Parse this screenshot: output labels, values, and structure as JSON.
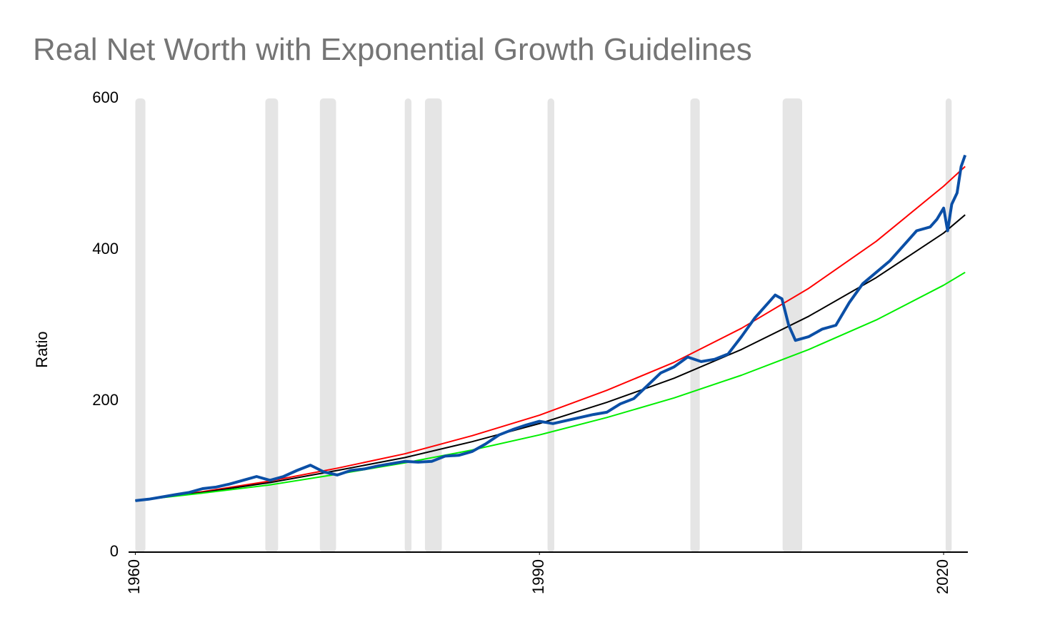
{
  "chart_data": {
    "type": "line",
    "title": "Real Net Worth with Exponential Growth Guidelines",
    "y_label": "Ratio",
    "xlim": [
      1959.5,
      2021.8
    ],
    "xticks": [
      1960,
      1990,
      2020
    ],
    "ylim": [
      0,
      600
    ],
    "yticks": [
      0,
      200,
      400,
      600
    ],
    "grid": false,
    "recessions": [
      [
        1960.0,
        1960.75
      ],
      [
        1969.65,
        1970.6
      ],
      [
        1973.7,
        1974.9
      ],
      [
        1980.0,
        1980.5
      ],
      [
        1981.5,
        1982.75
      ],
      [
        1990.6,
        1991.1
      ],
      [
        2001.2,
        2001.9
      ],
      [
        2008.05,
        2009.5
      ],
      [
        2020.15,
        2020.6
      ]
    ],
    "recession_color": "#e5e5e5",
    "series": [
      {
        "color": "#ff0000",
        "width": 2,
        "x": [
          1960,
          1965,
          1970,
          1975,
          1980,
          1985,
          1990,
          1995,
          2000,
          2005,
          2010,
          2015,
          2020,
          2021.6
        ],
        "values": [
          68,
          80,
          94,
          111,
          130,
          154,
          181,
          214,
          251,
          296,
          349,
          411,
          484,
          510
        ]
      },
      {
        "color": "#000000",
        "width": 2,
        "x": [
          1960,
          1965,
          1970,
          1975,
          1980,
          1985,
          1990,
          1995,
          2000,
          2005,
          2010,
          2015,
          2020,
          2021.6
        ],
        "values": [
          68,
          79,
          92,
          108,
          125,
          146,
          170,
          198,
          230,
          268,
          312,
          363,
          422,
          446
        ]
      },
      {
        "color": "#00ee00",
        "width": 2,
        "x": [
          1960,
          1965,
          1970,
          1975,
          1980,
          1985,
          1990,
          1995,
          2000,
          2005,
          2010,
          2015,
          2020,
          2021.6
        ],
        "values": [
          68,
          78,
          89,
          103,
          118,
          135,
          155,
          178,
          204,
          234,
          268,
          307,
          353,
          370
        ]
      },
      {
        "color": "#0b4fa6",
        "width": 4,
        "x": [
          1960,
          1961,
          1962,
          1963,
          1964,
          1965,
          1966,
          1967,
          1968,
          1969,
          1970,
          1971,
          1972,
          1973,
          1974,
          1975,
          1976,
          1977,
          1978,
          1979,
          1980,
          1981,
          1982,
          1983,
          1984,
          1985,
          1986,
          1987,
          1988,
          1989,
          1990,
          1991,
          1992,
          1993,
          1994,
          1995,
          1996,
          1997,
          1998,
          1999,
          2000,
          2001,
          2002,
          2003,
          2004,
          2005,
          2006,
          2007,
          2007.5,
          2008,
          2008.5,
          2009,
          2010,
          2011,
          2012,
          2013,
          2014,
          2015,
          2016,
          2017,
          2018,
          2019,
          2019.5,
          2020,
          2020.3,
          2020.6,
          2021,
          2021.3,
          2021.6
        ],
        "values": [
          68,
          70,
          73,
          76,
          79,
          84,
          86,
          90,
          95,
          100,
          95,
          100,
          108,
          115,
          106,
          102,
          108,
          110,
          114,
          117,
          120,
          119,
          120,
          127,
          128,
          133,
          143,
          155,
          162,
          168,
          173,
          170,
          174,
          178,
          182,
          185,
          196,
          203,
          220,
          237,
          245,
          258,
          252,
          255,
          262,
          285,
          310,
          330,
          340,
          335,
          300,
          280,
          285,
          295,
          300,
          330,
          355,
          370,
          385,
          405,
          425,
          430,
          440,
          455,
          425,
          460,
          475,
          510,
          525
        ]
      }
    ]
  }
}
